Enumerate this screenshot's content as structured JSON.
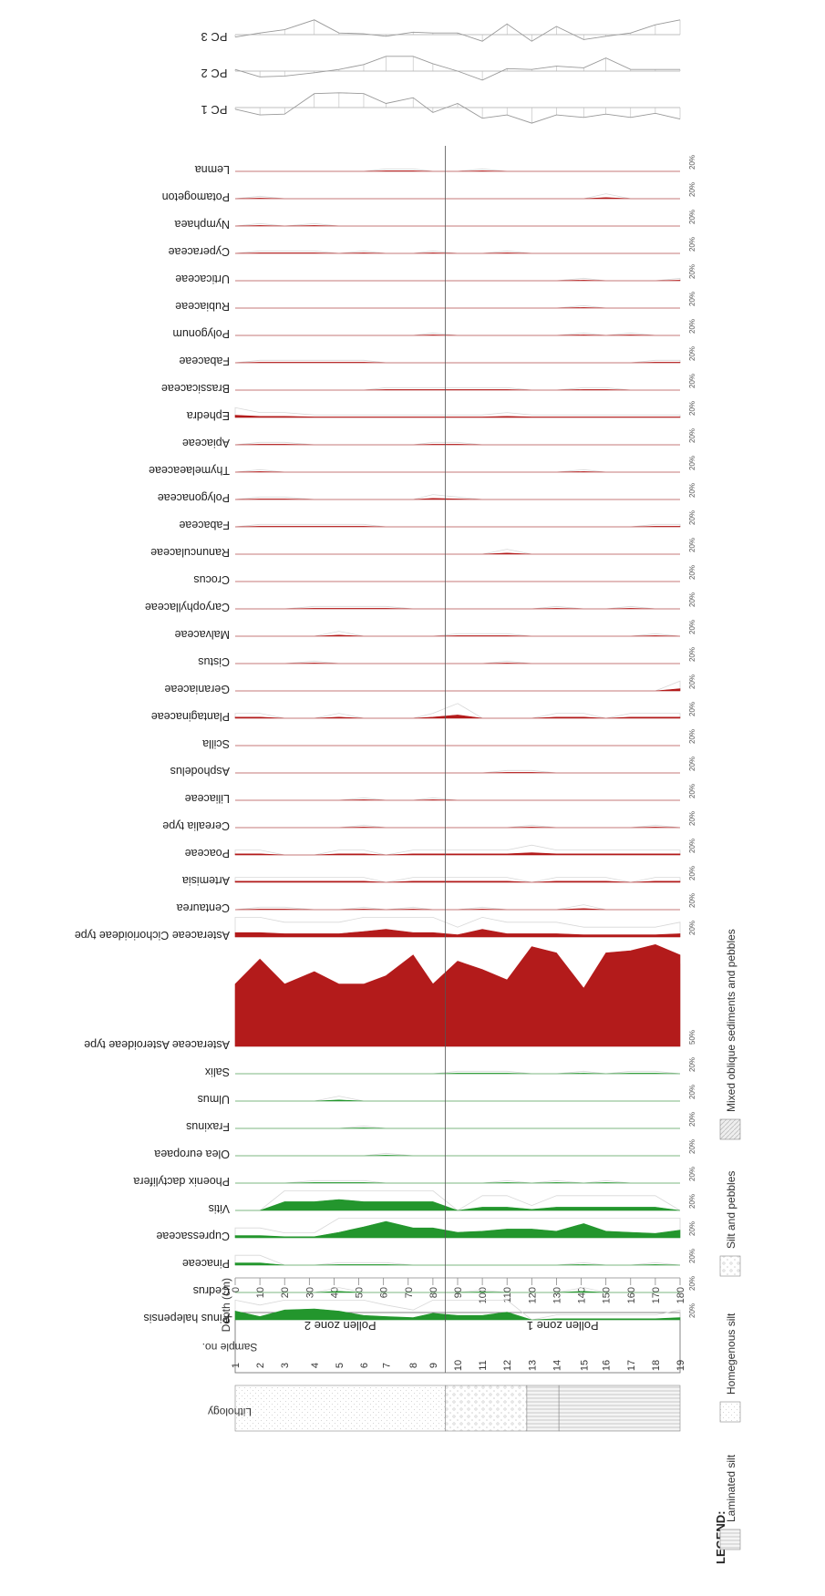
{
  "chart_data": {
    "type": "area",
    "orientation": "depth-on-horizontal-axis, taxa stacked vertically",
    "depth_axis": {
      "label": "Depth (cm)",
      "ticks": [
        0,
        10,
        20,
        30,
        40,
        50,
        60,
        70,
        80,
        90,
        100,
        110,
        120,
        130,
        140,
        150,
        160,
        170,
        180
      ],
      "range": [
        0,
        180
      ]
    },
    "sample_axis": {
      "label": "Sample no.",
      "samples": [
        {
          "no": "1",
          "depth": 0
        },
        {
          "no": "2",
          "depth": 10
        },
        {
          "no": "3",
          "depth": 20
        },
        {
          "no": "4",
          "depth": 32
        },
        {
          "no": "5",
          "depth": 42
        },
        {
          "no": "6",
          "depth": 52
        },
        {
          "no": "7",
          "depth": 61
        },
        {
          "no": "8",
          "depth": 72
        },
        {
          "no": "9",
          "depth": 80
        },
        {
          "no": "10",
          "depth": 90
        },
        {
          "no": "11",
          "depth": 100
        },
        {
          "no": "12",
          "depth": 110
        },
        {
          "no": "13",
          "depth": 120
        },
        {
          "no": "14",
          "depth": 130
        },
        {
          "no": "15",
          "depth": 141
        },
        {
          "no": "16",
          "depth": 150
        },
        {
          "no": "17",
          "depth": 160
        },
        {
          "no": "18",
          "depth": 170
        },
        {
          "no": "19",
          "depth": 180
        }
      ]
    },
    "lithology_label": "Lithology",
    "zones": [
      {
        "label": "Pollen zone 2",
        "from": 0,
        "to": 85
      },
      {
        "label": "Pollen zone 1",
        "from": 85,
        "to": 180
      }
    ],
    "scale_label_20": "20%",
    "scale_label_50": "50%",
    "pc_series": [
      {
        "name": "PC 1",
        "values": [
          -0.1,
          -0.45,
          -0.4,
          0.85,
          0.9,
          0.85,
          0.25,
          0.6,
          -0.3,
          0.25,
          -0.65,
          -0.45,
          -0.95,
          -0.45,
          -0.6,
          -0.4,
          -0.6,
          -0.35,
          -0.7
        ]
      },
      {
        "name": "PC 2",
        "values": [
          0.1,
          -0.35,
          -0.3,
          -0.1,
          0.1,
          0.4,
          0.9,
          0.9,
          0.45,
          0.0,
          -0.55,
          0.15,
          0.1,
          0.3,
          0.2,
          0.8,
          0.1,
          0.1,
          0.1
        ]
      },
      {
        "name": "PC 3",
        "values": [
          -0.15,
          0.1,
          0.3,
          0.9,
          0.1,
          0.05,
          -0.1,
          0.15,
          0.1,
          0.1,
          -0.4,
          0.65,
          -0.4,
          0.5,
          -0.3,
          -0.1,
          0.1,
          0.6,
          0.9
        ]
      }
    ],
    "series": [
      {
        "name": "Pinus halepensis",
        "group": "tree",
        "scale": "20%",
        "values": [
          8,
          3,
          9,
          10,
          8,
          4,
          3,
          2,
          6,
          4,
          4,
          7,
          0,
          1,
          1,
          1,
          1,
          1,
          2
        ]
      },
      {
        "name": "Cedrus",
        "group": "tree",
        "scale": "20%",
        "values": [
          0,
          0,
          0,
          0,
          1,
          0,
          0,
          0,
          0,
          0,
          0.5,
          0,
          0,
          0,
          1,
          0,
          0,
          0,
          0
        ]
      },
      {
        "name": "Pinaceae",
        "group": "tree",
        "scale": "20%",
        "values": [
          2,
          2,
          0,
          0,
          0.5,
          0.5,
          0.5,
          0,
          0,
          0,
          0,
          0,
          0,
          0,
          0.5,
          0,
          0,
          0.5,
          0
        ]
      },
      {
        "name": "Cupressaceae",
        "group": "tree",
        "scale": "20%",
        "values": [
          2,
          2,
          1,
          1,
          5,
          10,
          15,
          9,
          9,
          5,
          6,
          8,
          8,
          6,
          13,
          6,
          5,
          4,
          7
        ]
      },
      {
        "name": "Vitis",
        "group": "tree",
        "scale": "20%",
        "values": [
          0,
          0,
          8,
          8,
          10,
          8,
          8,
          8,
          8,
          0,
          3,
          3,
          1,
          3,
          3,
          3,
          3,
          3,
          0
        ]
      },
      {
        "name": "Phoenix dactylifera",
        "group": "tree",
        "scale": "20%",
        "values": [
          0,
          0,
          0,
          0.5,
          0.5,
          0.5,
          0,
          0,
          0,
          0,
          0,
          0.5,
          0,
          0.5,
          0,
          0.5,
          0,
          0,
          0
        ]
      },
      {
        "name": "Olea europaea",
        "group": "tree",
        "scale": "20%",
        "values": [
          0,
          0,
          0,
          0,
          0,
          0,
          0.5,
          0,
          0,
          0,
          0,
          0,
          0,
          0,
          0,
          0,
          0,
          0,
          0
        ]
      },
      {
        "name": "Fraxinus",
        "group": "tree",
        "scale": "20%",
        "values": [
          0,
          0,
          0,
          0,
          0,
          0.5,
          0,
          0,
          0,
          0,
          0,
          0,
          0,
          0,
          0,
          0,
          0,
          0,
          0
        ]
      },
      {
        "name": "Ulmus",
        "group": "tree",
        "scale": "20%",
        "values": [
          0,
          0,
          0,
          0,
          1,
          0,
          0,
          0,
          0,
          0,
          0,
          0,
          0,
          0,
          0,
          0,
          0,
          0,
          0
        ]
      },
      {
        "name": "Salix",
        "group": "tree",
        "scale": "20%",
        "values": [
          0,
          0,
          0,
          0,
          0,
          0,
          0,
          0,
          0,
          0.5,
          0.5,
          0.5,
          0,
          0,
          0.5,
          0,
          0.5,
          0.5,
          0
        ]
      },
      {
        "name": "Asteraceae Asteroideae type",
        "group": "herb",
        "scale": "50%",
        "values": [
          30,
          42,
          30,
          36,
          30,
          30,
          34,
          44,
          30,
          41,
          37,
          32,
          48,
          45,
          28,
          45,
          46,
          49,
          44
        ]
      },
      {
        "name": "Asteraceae Cichorioideae type",
        "group": "herb",
        "scale": "20%",
        "values": [
          4,
          4,
          3,
          3,
          3,
          5,
          7,
          4,
          4,
          2,
          7,
          3,
          3,
          3,
          2,
          2,
          2,
          2,
          3
        ]
      },
      {
        "name": "Centaurea",
        "group": "herb",
        "scale": "20%",
        "values": [
          0,
          0.5,
          0.5,
          0,
          0,
          0.5,
          0,
          0.5,
          0,
          0,
          0.5,
          0,
          0,
          0,
          1,
          0,
          0,
          0,
          0
        ]
      },
      {
        "name": "Artemisia",
        "group": "herb",
        "scale": "20%",
        "values": [
          1,
          1,
          1,
          1,
          1,
          1,
          0,
          1,
          1,
          1,
          1,
          1,
          0,
          1,
          1,
          1,
          0,
          1,
          1
        ]
      },
      {
        "name": "Poaceae",
        "group": "herb",
        "scale": "20%",
        "values": [
          1,
          1,
          0,
          0,
          1,
          1,
          0,
          1,
          1,
          1,
          1,
          1,
          2,
          1,
          1,
          1,
          1,
          1,
          1
        ]
      },
      {
        "name": "Cerealia type",
        "group": "herb",
        "scale": "20%",
        "values": [
          0,
          0,
          0,
          0,
          0,
          0.5,
          0,
          0,
          0,
          0,
          0,
          0,
          0.5,
          0,
          0,
          0,
          0,
          0.5,
          0
        ]
      },
      {
        "name": "Liliaceae",
        "group": "herb",
        "scale": "20%",
        "values": [
          0,
          0,
          0,
          0,
          0,
          0.5,
          0,
          0,
          0.5,
          0,
          0,
          0,
          0,
          0,
          0,
          0,
          0,
          0,
          0
        ]
      },
      {
        "name": "Asphodelus",
        "group": "herb",
        "scale": "20%",
        "values": [
          0,
          0,
          0,
          0,
          0,
          0,
          0,
          0,
          0,
          0,
          0,
          0.5,
          0.5,
          0,
          0,
          0,
          0,
          0,
          0
        ]
      },
      {
        "name": "Scilla",
        "group": "herb",
        "scale": "20%",
        "values": [
          0,
          0,
          0,
          0,
          0,
          0,
          0,
          0,
          0,
          0,
          0,
          0,
          0,
          0,
          0,
          0,
          0,
          0,
          0
        ]
      },
      {
        "name": "Plantaginaceae",
        "group": "herb",
        "scale": "20%",
        "values": [
          1,
          1,
          0,
          0,
          1,
          0,
          0,
          0,
          1,
          3,
          0,
          0,
          0,
          1,
          1,
          0,
          1,
          1,
          1
        ]
      },
      {
        "name": "Geraniaceae",
        "group": "herb",
        "scale": "20%",
        "values": [
          0,
          0,
          0,
          0,
          0,
          0,
          0,
          0,
          0,
          0,
          0,
          0,
          0,
          0,
          0,
          0,
          0,
          0,
          2
        ]
      },
      {
        "name": "Cistus",
        "group": "herb",
        "scale": "20%",
        "values": [
          0,
          0,
          0,
          0.5,
          0,
          0,
          0,
          0,
          0,
          0,
          0,
          0.5,
          0,
          0,
          0,
          0,
          0,
          0,
          0
        ]
      },
      {
        "name": "Malvaceae",
        "group": "herb",
        "scale": "20%",
        "values": [
          0,
          0,
          0,
          0,
          1,
          0,
          0,
          0,
          0,
          0.5,
          0.5,
          0.5,
          0,
          0,
          0,
          0,
          0,
          0.5,
          0
        ]
      },
      {
        "name": "Caryophyllaceae",
        "group": "herb",
        "scale": "20%",
        "values": [
          0,
          0,
          0,
          0.5,
          0.5,
          0.5,
          0.5,
          0,
          0,
          0,
          0,
          0,
          0,
          0.5,
          0,
          0,
          0.5,
          0,
          0
        ]
      },
      {
        "name": "Crocus",
        "group": "herb",
        "scale": "20%",
        "values": [
          0,
          0,
          0,
          0,
          0,
          0,
          0,
          0,
          0,
          0,
          0,
          0,
          0,
          0,
          0,
          0,
          0,
          0,
          0
        ]
      },
      {
        "name": "Ranunculaceae",
        "group": "herb",
        "scale": "20%",
        "values": [
          0,
          0,
          0,
          0,
          0,
          0,
          0,
          0,
          0,
          0,
          0,
          1,
          0,
          0,
          0,
          0,
          0,
          0,
          0
        ]
      },
      {
        "name": "Fabaceae",
        "group": "herb",
        "scale": "20%",
        "values": [
          0,
          0.5,
          0.5,
          0.5,
          0.5,
          0.5,
          0,
          0,
          0,
          0,
          0,
          0,
          0,
          0,
          0,
          0,
          0,
          0.5,
          0.5
        ]
      },
      {
        "name": "Polygonaceae",
        "group": "herb",
        "scale": "20%",
        "values": [
          0,
          0.5,
          0.5,
          0,
          0,
          0,
          0,
          0,
          1,
          0.5,
          0,
          0,
          0,
          0,
          0,
          0,
          0,
          0,
          0
        ]
      },
      {
        "name": "Thymelaeaceae",
        "group": "herb",
        "scale": "20%",
        "values": [
          0,
          0.5,
          0,
          0,
          0,
          0,
          0,
          0,
          0,
          0,
          0,
          0,
          0,
          0,
          0.5,
          0,
          0,
          0,
          0
        ]
      },
      {
        "name": "Apiaceae",
        "group": "herb",
        "scale": "20%",
        "values": [
          0,
          0.5,
          0.5,
          0,
          0,
          0,
          0,
          0,
          0.5,
          0.5,
          0,
          0,
          0,
          0,
          0,
          0,
          0,
          0,
          0
        ]
      },
      {
        "name": "Ephedra",
        "group": "herb",
        "scale": "20%",
        "values": [
          2,
          1,
          1,
          0.5,
          0.5,
          0.5,
          0.5,
          0.5,
          0.5,
          0.5,
          0.5,
          1,
          0.5,
          0.5,
          0.5,
          0.5,
          0.5,
          0.5,
          0.5
        ]
      },
      {
        "name": "Brassicaceae",
        "group": "herb",
        "scale": "20%",
        "values": [
          0,
          0,
          0,
          0,
          0,
          0,
          0.5,
          0.5,
          0.5,
          0.5,
          0.5,
          0.5,
          0,
          0,
          0.5,
          0.5,
          0,
          0,
          0
        ]
      },
      {
        "name": "Fabaceae",
        "group": "herb",
        "scale": "20%",
        "values": [
          0,
          0.5,
          0.5,
          0.5,
          0.5,
          0.5,
          0,
          0,
          0,
          0,
          0,
          0,
          0,
          0,
          0,
          0,
          0,
          0.5,
          0.5
        ]
      },
      {
        "name": "Polygonum",
        "group": "herb",
        "scale": "20%",
        "values": [
          0,
          0,
          0,
          0,
          0,
          0,
          0,
          0,
          0.5,
          0,
          0,
          0,
          0,
          0,
          0.5,
          0,
          0.5,
          0,
          0
        ]
      },
      {
        "name": "Rubiaceae",
        "group": "herb",
        "scale": "20%",
        "values": [
          0,
          0,
          0,
          0,
          0,
          0,
          0,
          0,
          0,
          0,
          0,
          0,
          0,
          0,
          0.5,
          0,
          0,
          0,
          0
        ]
      },
      {
        "name": "Urticaceae",
        "group": "herb",
        "scale": "20%",
        "values": [
          0,
          0,
          0,
          0,
          0,
          0,
          0,
          0,
          0,
          0,
          0,
          0,
          0,
          0,
          0.5,
          0,
          0,
          0,
          0.5
        ]
      },
      {
        "name": "Cyperaceae",
        "group": "herb",
        "scale": "20%",
        "values": [
          0,
          0.5,
          0.5,
          0.5,
          0,
          0.5,
          0,
          0,
          0.5,
          0,
          0,
          0.5,
          0,
          0,
          0,
          0,
          0,
          0,
          0
        ]
      },
      {
        "name": "Nymphaea",
        "group": "herb",
        "scale": "20%",
        "values": [
          0,
          0.5,
          0,
          0.5,
          0,
          0,
          0,
          0,
          0,
          0,
          0,
          0,
          0,
          0,
          0,
          0,
          0,
          0,
          0
        ]
      },
      {
        "name": "Potamogeton",
        "group": "herb",
        "scale": "20%",
        "values": [
          0,
          0.5,
          0,
          0,
          0,
          0,
          0,
          0,
          0,
          0,
          0,
          0,
          0,
          0,
          0,
          1,
          0,
          0,
          0
        ]
      },
      {
        "name": "Lemna",
        "group": "herb",
        "scale": "20%",
        "values": [
          0,
          0,
          0,
          0,
          0,
          0,
          0.5,
          0.5,
          0,
          0,
          0.5,
          0,
          0,
          0,
          0,
          0,
          0,
          0,
          0
        ]
      }
    ],
    "colors": {
      "tree": "#23962d",
      "herb": "#b31b1b",
      "exag": "#d8d8d8",
      "axis": "#555555"
    }
  },
  "legend": {
    "title": "LEGEND:",
    "items": [
      {
        "label": "Laminated silt",
        "pattern": "laminated"
      },
      {
        "label": "Homegenous silt",
        "pattern": "homogenous"
      },
      {
        "label": "Silt and pebbles",
        "pattern": "pebbles"
      },
      {
        "label": "Mixed oblique sediments and pebbles",
        "pattern": "oblique"
      }
    ]
  }
}
